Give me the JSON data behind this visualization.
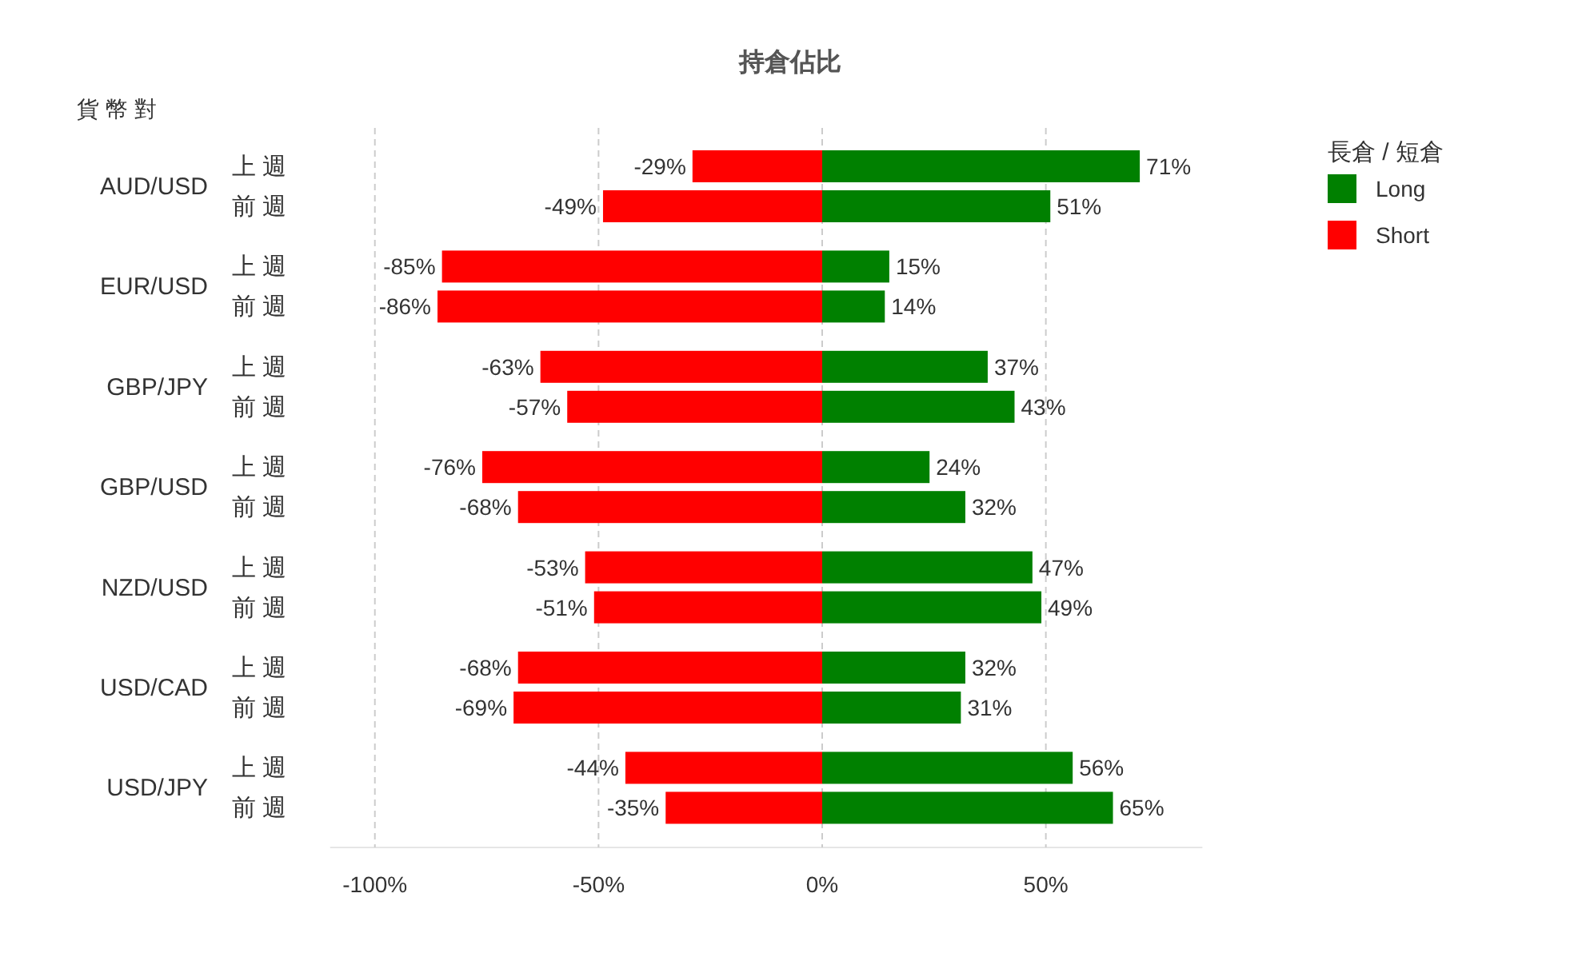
{
  "chart_data": {
    "type": "bar",
    "orientation": "horizontal",
    "title": "持倉佔比",
    "ylabel": "貨 幣 對",
    "legend_title": "長倉 / 短倉",
    "legend": "top right",
    "grid": "x",
    "categories": [
      "上 週",
      "前 週",
      "上 週",
      "前 週",
      "上 週",
      "前 週",
      "上 週",
      "前 週",
      "上 週",
      "前 週",
      "上 週",
      "前 週",
      "上 週",
      "前 週"
    ],
    "annotations": [
      "AUD/USD",
      "EUR/USD",
      "GBP/JPY",
      "GBP/USD",
      "NZD/USD",
      "USD/CAD",
      "USD/JPY"
    ],
    "series": [
      {
        "name": "Long",
        "color": "#008000",
        "values": [
          71,
          51,
          15,
          14,
          37,
          43,
          24,
          32,
          47,
          49,
          32,
          31,
          56,
          65
        ],
        "value_labels": [
          "71%",
          "51%",
          "15%",
          "14%",
          "37%",
          "43%",
          "24%",
          "32%",
          "47%",
          "49%",
          "32%",
          "31%",
          "56%",
          "65%"
        ]
      },
      {
        "name": "Short",
        "color": "#ff0000",
        "values": [
          -29,
          -49,
          -85,
          -86,
          -63,
          -57,
          -76,
          -68,
          -53,
          -51,
          -68,
          -69,
          -44,
          -35
        ],
        "value_labels": [
          "-29%",
          "-49%",
          "-85%",
          "-86%",
          "-63%",
          "-57%",
          "-76%",
          "-68%",
          "-53%",
          "-51%",
          "-68%",
          "-69%",
          "-44%",
          "-35%"
        ]
      }
    ],
    "stacked": true,
    "xlim": [
      -110,
      85
    ],
    "xticks": [
      {
        "value": -100,
        "label": "-100%"
      },
      {
        "value": -50,
        "label": "-50%"
      },
      {
        "value": 0,
        "label": "0%"
      },
      {
        "value": 50,
        "label": "50%"
      }
    ]
  }
}
